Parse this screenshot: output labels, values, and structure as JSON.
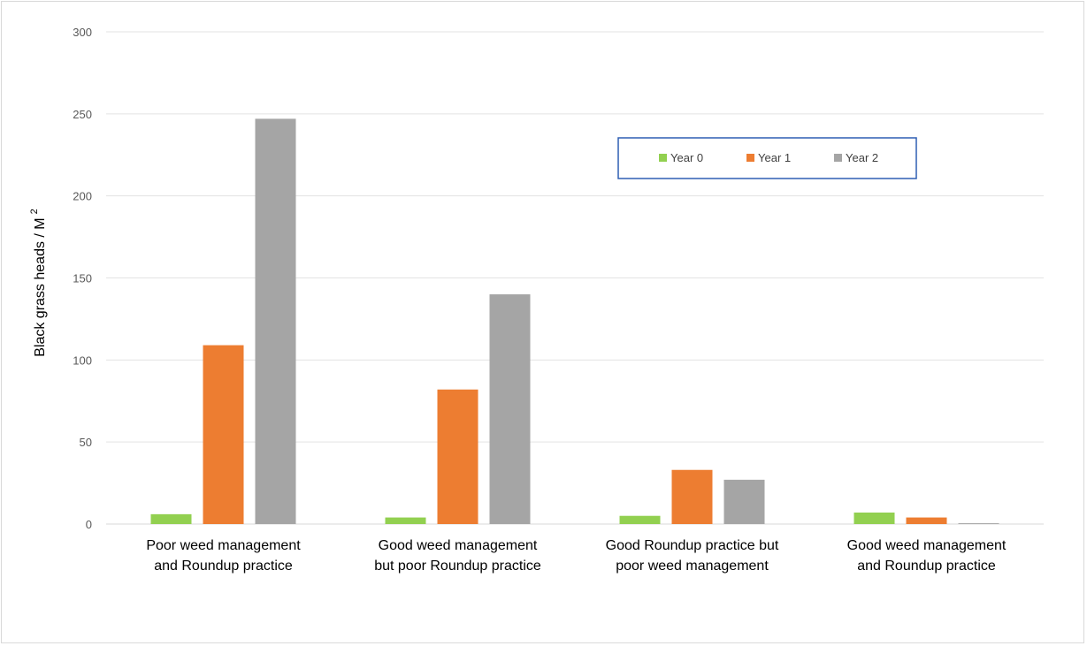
{
  "chart_data": {
    "type": "bar",
    "ylabel": "Black grass heads / M",
    "ylabel_superscript": "2",
    "ylim": [
      0,
      300
    ],
    "yticks": [
      "0",
      "50",
      "100",
      "150",
      "200",
      "250",
      "300"
    ],
    "ytick_values": [
      0,
      50,
      100,
      150,
      200,
      250,
      300
    ],
    "grid": true,
    "legend_position": "top-right",
    "categories": [
      [
        "Poor weed management",
        "and Roundup practice"
      ],
      [
        "Good weed management",
        "but poor Roundup practice"
      ],
      [
        "Good Roundup practice but",
        "poor weed management"
      ],
      [
        "Good weed management",
        "and Roundup practice"
      ]
    ],
    "series": [
      {
        "name": "Year 0",
        "color": "#92d050",
        "values": [
          6,
          4,
          5,
          7
        ]
      },
      {
        "name": "Year 1",
        "color": "#ed7d31",
        "values": [
          109,
          82,
          33,
          4
        ]
      },
      {
        "name": "Year 2",
        "color": "#a5a5a5",
        "values": [
          247,
          140,
          27,
          0.5
        ]
      }
    ]
  }
}
